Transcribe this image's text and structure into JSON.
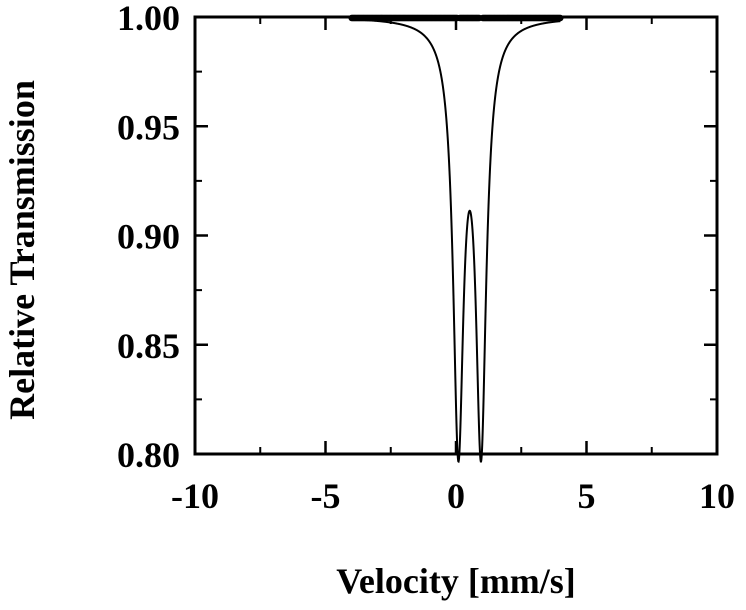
{
  "chart_data": {
    "type": "scatter",
    "title": "",
    "xlabel": "Velocity [mm/s]",
    "ylabel": "Relative Transmission",
    "xlim": [
      -10,
      10
    ],
    "ylim": [
      0.8,
      1.0
    ],
    "x_ticks": [
      "-10",
      "-5",
      "0",
      "5",
      "10"
    ],
    "y_ticks": [
      "1.00",
      "0.95",
      "0.90",
      "0.85",
      "0.80"
    ],
    "grid": false,
    "legend": "none",
    "series": [
      {
        "style": "points-with-fit-line",
        "color": "#000000",
        "model": {
          "baseline": 1.0,
          "peaks": [
            {
              "center": 0.09,
              "depth": 0.19,
              "hwhm": 0.24
            },
            {
              "center": 0.96,
              "depth": 0.19,
              "hwhm": 0.24
            }
          ]
        },
        "x_range": [
          -4.0,
          4.0
        ],
        "n_points": 256
      }
    ]
  }
}
